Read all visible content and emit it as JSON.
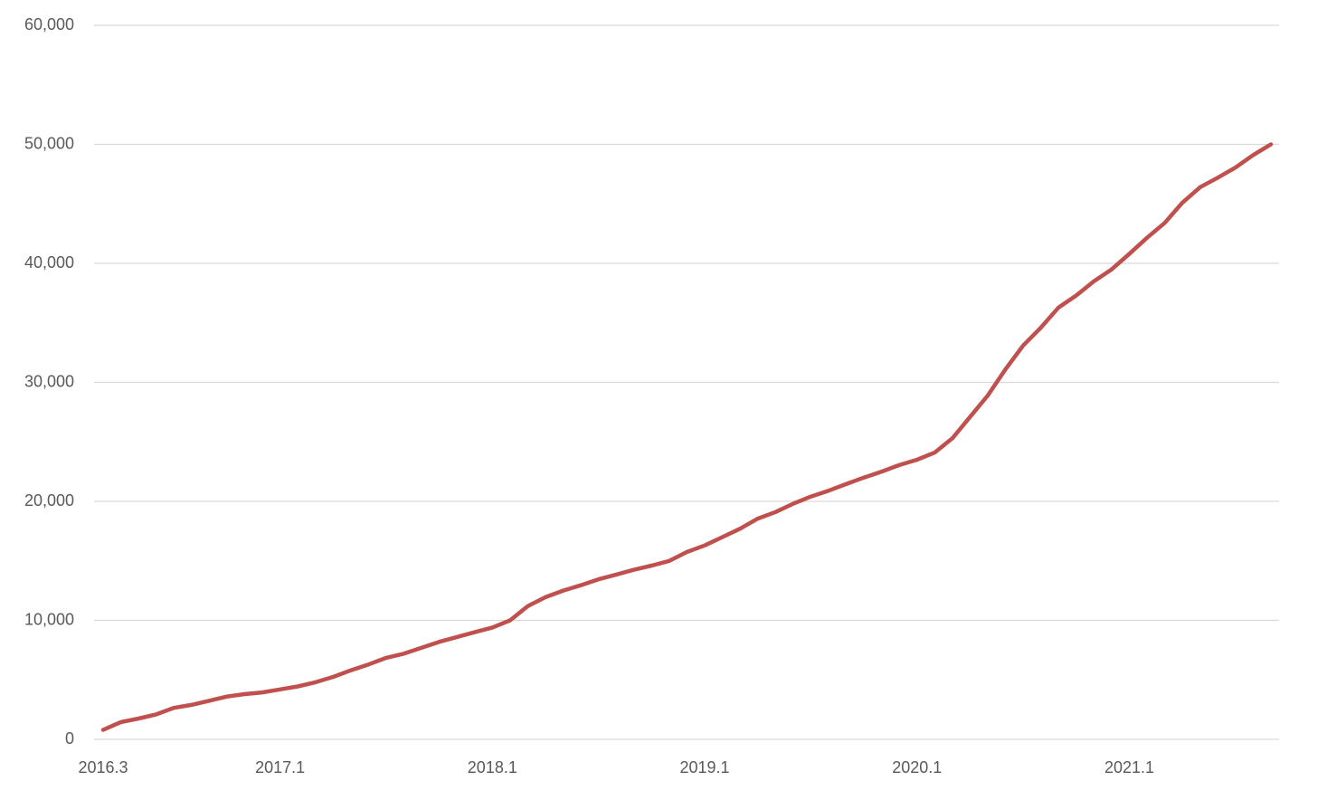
{
  "chart_data": {
    "type": "line",
    "categories": [
      "2016.3",
      null,
      null,
      null,
      null,
      null,
      null,
      null,
      null,
      null,
      "2017.1",
      null,
      null,
      null,
      null,
      null,
      null,
      null,
      null,
      null,
      null,
      null,
      "2018.1",
      null,
      null,
      null,
      null,
      null,
      null,
      null,
      null,
      null,
      null,
      null,
      "2019.1",
      null,
      null,
      null,
      null,
      null,
      null,
      null,
      null,
      null,
      null,
      null,
      "2020.1",
      null,
      null,
      null,
      null,
      null,
      null,
      null,
      null,
      null,
      null,
      null,
      "2021.1",
      null,
      null,
      null,
      null,
      null,
      null,
      null,
      null
    ],
    "series": [
      {
        "color": "#c0504d",
        "values": [
          800,
          1450,
          1750,
          2100,
          2650,
          2900,
          3250,
          3600,
          3800,
          3950,
          4200,
          4450,
          4800,
          5250,
          5800,
          6300,
          6850,
          7200,
          7700,
          8200,
          8600,
          9000,
          9400,
          10000,
          11200,
          11950,
          12500,
          12950,
          13450,
          13850,
          14250,
          14600,
          15000,
          15750,
          16300,
          17000,
          17700,
          18550,
          19100,
          19800,
          20400,
          20900,
          21450,
          22000,
          22500,
          23050,
          23500,
          24100,
          25300,
          27100,
          28900,
          31100,
          33100,
          34600,
          36300,
          37300,
          38500,
          39500,
          40800,
          42150,
          43400,
          45100,
          46400,
          47200,
          48050,
          49100,
          50000
        ]
      }
    ],
    "ylim": [
      0,
      60000
    ],
    "yticks": [
      0,
      {
        "value": 10000,
        "label": "10,000"
      },
      {
        "value": 20000,
        "label": "20,000"
      },
      {
        "value": 30000,
        "label": "30,000"
      },
      {
        "value": 40000,
        "label": "40,000"
      },
      {
        "value": 50000,
        "label": "50,000"
      },
      {
        "value": 60000,
        "label": "60,000"
      }
    ],
    "grid": true
  }
}
